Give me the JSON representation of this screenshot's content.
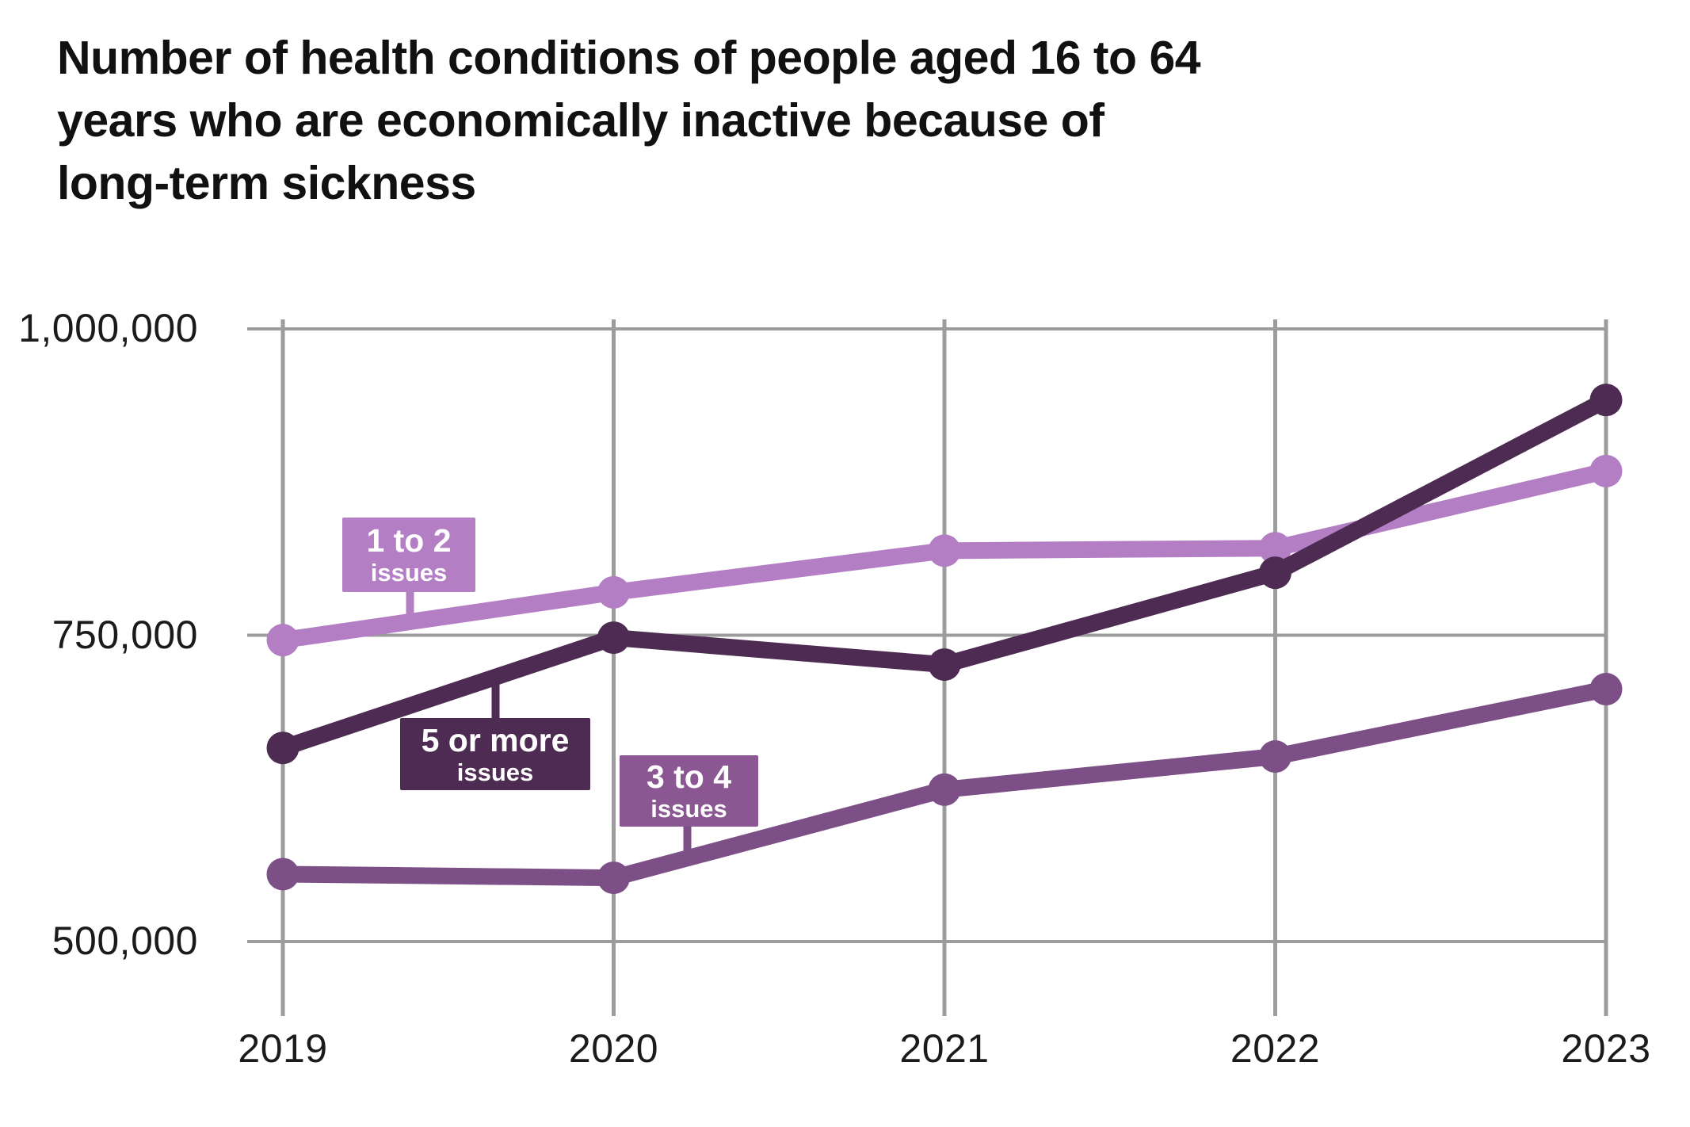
{
  "title": {
    "lines": [
      "Number of health conditions of people aged 16 to 64",
      "years who are economically inactive because of",
      "long-term sickness"
    ]
  },
  "chart_data": {
    "type": "line",
    "title": "Number of health conditions of people aged 16 to 64 years who are economically inactive because of long-term sickness",
    "x": [
      "2019",
      "2020",
      "2021",
      "2022",
      "2023"
    ],
    "xlabel": "",
    "ylabel": "",
    "ylim": [
      450000,
      1030000
    ],
    "grid": true,
    "legend_position": "inline-callouts",
    "y_ticks": [
      {
        "value": 1000000,
        "label": "1,000,000"
      },
      {
        "value": 750000,
        "label": "750,000"
      },
      {
        "value": 500000,
        "label": "500,000"
      }
    ],
    "series": [
      {
        "name": "1 to 2 issues",
        "label_line1": "1 to 2",
        "label_line2": "issues",
        "color": "#b37ec4",
        "box_color": "#b37ec4",
        "values": [
          746000,
          785000,
          819000,
          821000,
          884000
        ]
      },
      {
        "name": "5 or more issues",
        "label_line1": "5 or more",
        "label_line2": "issues",
        "color": "#4e2b52",
        "box_color": "#4e2b52",
        "values": [
          658000,
          748000,
          726000,
          801000,
          942000
        ]
      },
      {
        "name": "3 to 4 issues",
        "label_line1": "3 to 4",
        "label_line2": "issues",
        "color": "#7d4f87",
        "box_color": "#8a5793",
        "values": [
          555000,
          552000,
          624000,
          651000,
          706000
        ]
      }
    ],
    "colors": {
      "gridline": "#9c9c9c",
      "tick_text": "#1b1b1b",
      "title_text": "#111111",
      "background": "#ffffff",
      "callout_text": "#ffffff"
    }
  }
}
